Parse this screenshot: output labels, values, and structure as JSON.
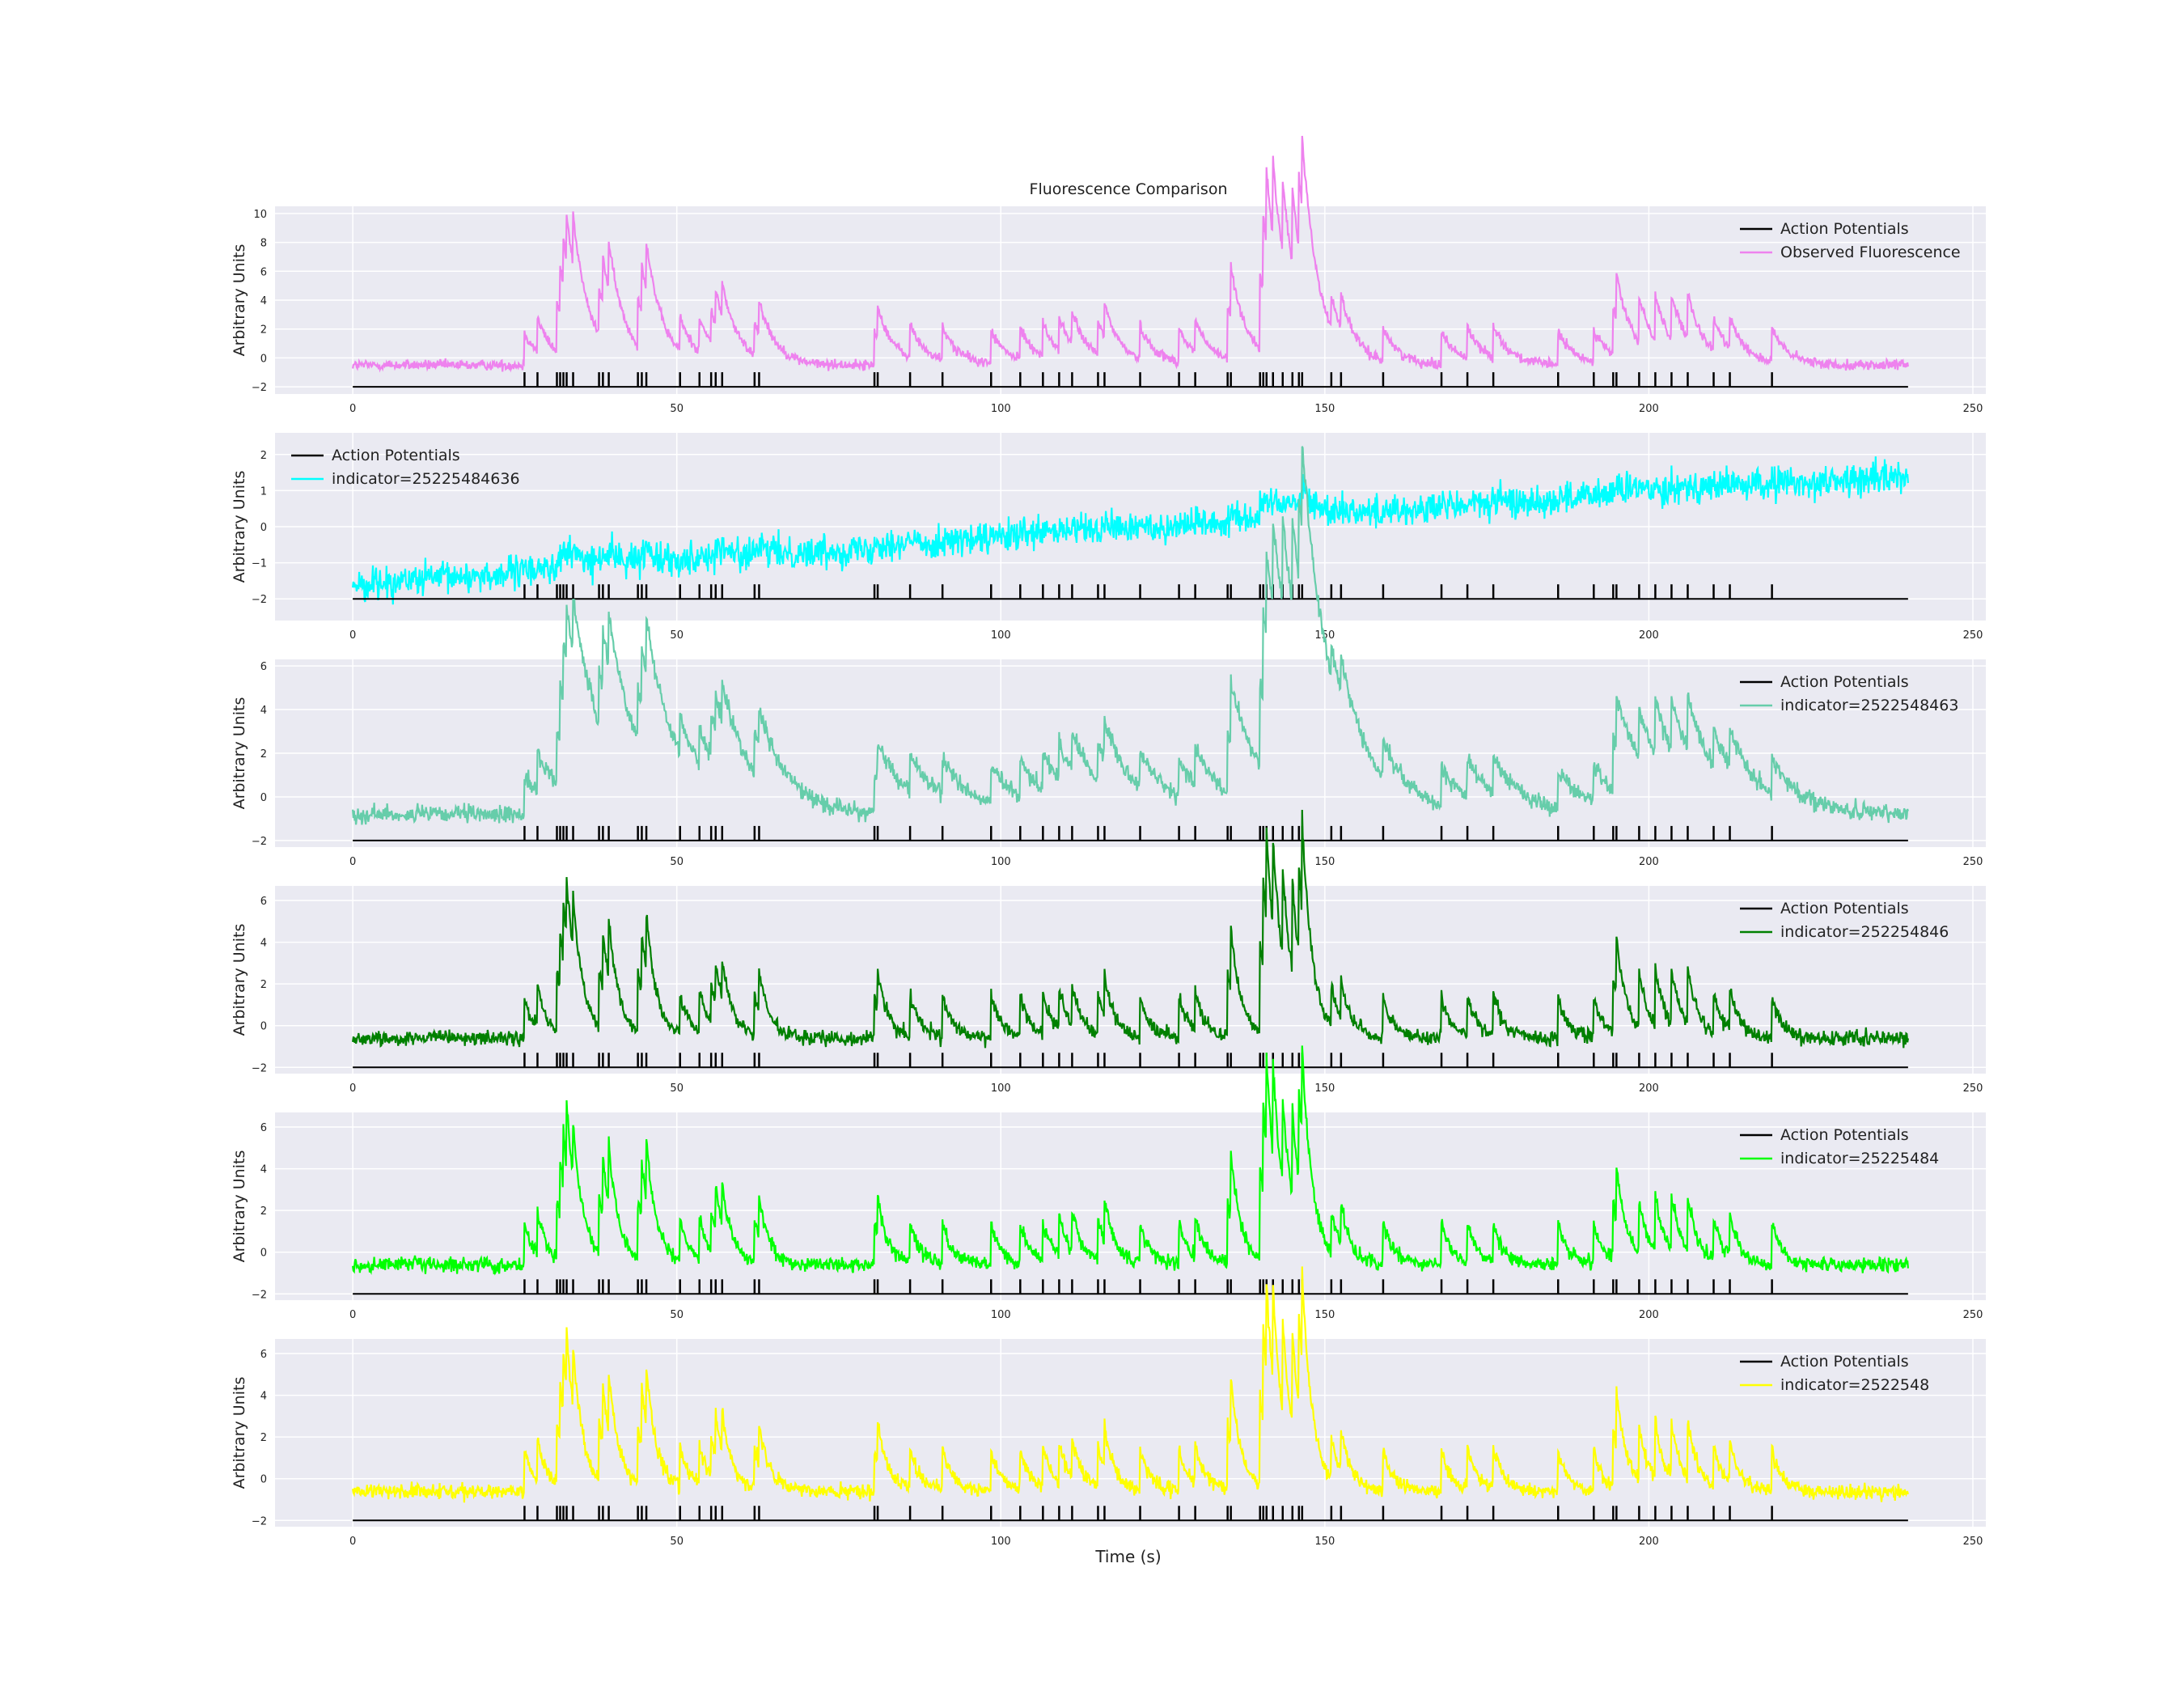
{
  "figure": {
    "title": "Fluorescence Comparison",
    "xlabel": "Time (s)"
  },
  "chart_data": [
    {
      "type": "line",
      "title": "Fluorescence Comparison",
      "xlabel": "",
      "ylabel": "Arbitrary Units",
      "xlim": [
        -12,
        252
      ],
      "ylim": [
        -2.5,
        10.5
      ],
      "xticks": [
        0,
        50,
        100,
        150,
        200,
        250
      ],
      "yticks": [
        -2,
        0,
        2,
        4,
        6,
        8,
        10
      ],
      "grid": true,
      "legend": "top-right",
      "series": [
        {
          "name": "Action Potentials",
          "color": "#000000"
        },
        {
          "name": "Observed Fluorescence",
          "color": "#ee82ee",
          "baseline": -0.5,
          "trend": [
            0,
            0
          ],
          "noise": 0.22,
          "amp_scale": 1.0
        }
      ]
    },
    {
      "type": "line",
      "title": "",
      "xlabel": "",
      "ylabel": "Arbitrary Units",
      "xlim": [
        -12,
        252
      ],
      "ylim": [
        -2.6,
        2.6
      ],
      "xticks": [
        0,
        50,
        100,
        150,
        200,
        250
      ],
      "yticks": [
        -2,
        -1,
        0,
        1,
        2
      ],
      "grid": true,
      "legend": "top-left",
      "series": [
        {
          "name": "Action Potentials",
          "color": "#000000"
        },
        {
          "name": "indicator=25225484636",
          "color": "#00ffff",
          "baseline": 0,
          "trend": [
            -1.6,
            1.4
          ],
          "noise": 0.28,
          "amp_scale": 0.05
        }
      ]
    },
    {
      "type": "line",
      "title": "",
      "xlabel": "",
      "ylabel": "Arbitrary Units",
      "xlim": [
        -12,
        252
      ],
      "ylim": [
        -2.3,
        6.3
      ],
      "xticks": [
        0,
        50,
        100,
        150,
        200,
        250
      ],
      "yticks": [
        -2,
        0,
        2,
        4,
        6
      ],
      "grid": true,
      "legend": "top-right",
      "series": [
        {
          "name": "Action Potentials",
          "color": "#000000"
        },
        {
          "name": "indicator=2522548463",
          "color": "#66cdaa",
          "baseline": -0.8,
          "trend": [
            0,
            0
          ],
          "noise": 0.25,
          "amp_scale": 0.75,
          "tau": 4.5
        }
      ]
    },
    {
      "type": "line",
      "title": "",
      "xlabel": "",
      "ylabel": "Arbitrary Units",
      "xlim": [
        -12,
        252
      ],
      "ylim": [
        -2.3,
        6.7
      ],
      "xticks": [
        0,
        50,
        100,
        150,
        200,
        250
      ],
      "yticks": [
        -2,
        0,
        2,
        4,
        6
      ],
      "grid": true,
      "legend": "top-right",
      "series": [
        {
          "name": "Action Potentials",
          "color": "#000000"
        },
        {
          "name": "indicator=252254846",
          "color": "#008000",
          "baseline": -0.6,
          "trend": [
            0,
            0
          ],
          "noise": 0.22,
          "amp_scale": 0.85,
          "tau": 1.6
        }
      ]
    },
    {
      "type": "line",
      "title": "",
      "xlabel": "",
      "ylabel": "Arbitrary Units",
      "xlim": [
        -12,
        252
      ],
      "ylim": [
        -2.3,
        6.7
      ],
      "xticks": [
        0,
        50,
        100,
        150,
        200,
        250
      ],
      "yticks": [
        -2,
        0,
        2,
        4,
        6
      ],
      "grid": true,
      "legend": "top-right",
      "series": [
        {
          "name": "Action Potentials",
          "color": "#000000"
        },
        {
          "name": "indicator=25225484",
          "color": "#00ff00",
          "baseline": -0.6,
          "trend": [
            0,
            0
          ],
          "noise": 0.22,
          "amp_scale": 0.85,
          "tau": 1.6
        }
      ]
    },
    {
      "type": "line",
      "title": "",
      "xlabel": "Time (s)",
      "ylabel": "Arbitrary Units",
      "xlim": [
        -12,
        252
      ],
      "ylim": [
        -2.3,
        6.7
      ],
      "xticks": [
        0,
        50,
        100,
        150,
        200,
        250
      ],
      "yticks": [
        -2,
        0,
        2,
        4,
        6
      ],
      "grid": true,
      "legend": "top-right",
      "series": [
        {
          "name": "Action Potentials",
          "color": "#000000"
        },
        {
          "name": "indicator=2522548",
          "color": "#ffff00",
          "baseline": -0.6,
          "trend": [
            0,
            0
          ],
          "noise": 0.22,
          "amp_scale": 0.85,
          "tau": 1.6
        }
      ]
    }
  ],
  "spikes": {
    "times": [
      26.5,
      28.5,
      31.5,
      32,
      32.5,
      33,
      34,
      38,
      38.6,
      39.5,
      44,
      44.6,
      45.3,
      50.5,
      53.5,
      55.3,
      56,
      57,
      62,
      62.7,
      80.5,
      81,
      86,
      91,
      98.5,
      103,
      106.5,
      109,
      111,
      115,
      116,
      121.5,
      127.5,
      130,
      135,
      135.5,
      140,
      140.5,
      141,
      142,
      143.5,
      145,
      146,
      146.5,
      151,
      152.5,
      159,
      168,
      172,
      176,
      186,
      191.5,
      194.5,
      195,
      198.5,
      201,
      203.5,
      206,
      210,
      212.5,
      219
    ]
  }
}
